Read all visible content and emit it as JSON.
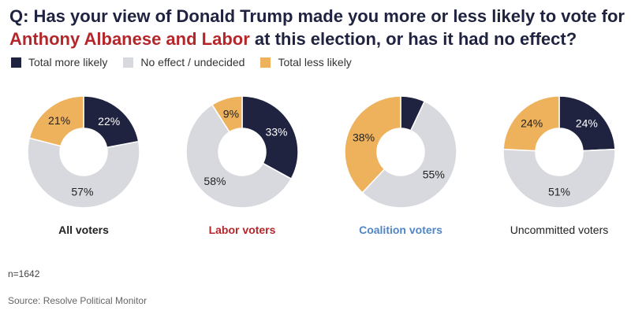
{
  "title": {
    "line1": "Q: Has your view of Donald Trump made you more or less likely to vote for",
    "highlight": "Anthony Albanese and Labor",
    "line2_rest": " at this election, or has it had no effect?"
  },
  "legend": [
    {
      "label": "Total more likely",
      "color": "#1f2340"
    },
    {
      "label": "No effect / undecided",
      "color": "#d8d9de"
    },
    {
      "label": "Total less likely",
      "color": "#eeb15c"
    }
  ],
  "chart_data": [
    {
      "type": "pie",
      "title": "All voters",
      "title_color": "#222222",
      "categories": [
        "Total more likely",
        "No effect / undecided",
        "Total less likely"
      ],
      "values": [
        22,
        57,
        21
      ],
      "labels": [
        "22%",
        "57%",
        "21%"
      ]
    },
    {
      "type": "pie",
      "title": "Labor voters",
      "title_color": "#b5262b",
      "categories": [
        "Total more likely",
        "No effect / undecided",
        "Total less likely"
      ],
      "values": [
        33,
        58,
        9
      ],
      "labels": [
        "33%",
        "58%",
        "9%"
      ]
    },
    {
      "type": "pie",
      "title": "Coalition voters",
      "title_color": "#4f86c6",
      "categories": [
        "Total more likely",
        "No effect / undecided",
        "Total less likely"
      ],
      "values": [
        7,
        55,
        38
      ],
      "labels": [
        "",
        "55%",
        "38%"
      ]
    },
    {
      "type": "pie",
      "title": "Uncommitted voters",
      "title_color": "#222222",
      "categories": [
        "Total more likely",
        "No effect / undecided",
        "Total less likely"
      ],
      "values": [
        24,
        51,
        24
      ],
      "labels": [
        "24%",
        "51%",
        "24%"
      ]
    }
  ],
  "footer": {
    "n": "n=1642",
    "source": "Source: Resolve Political Monitor"
  }
}
